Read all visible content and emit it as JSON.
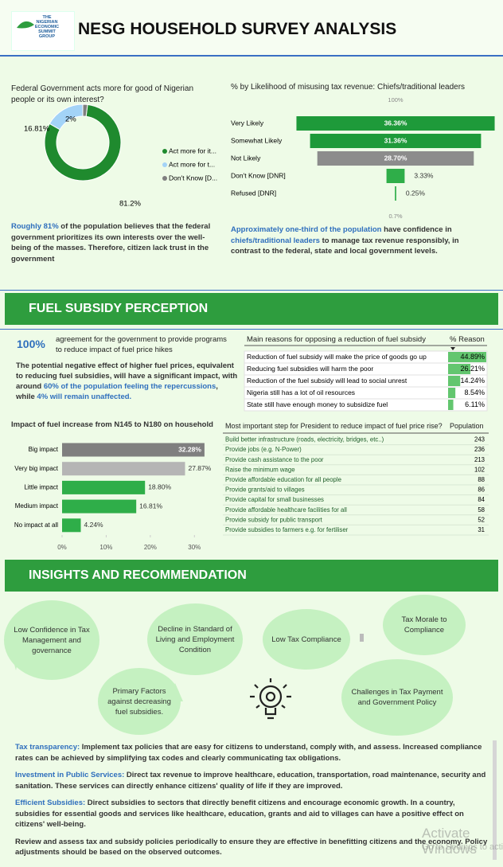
{
  "header": {
    "logo": [
      "THE",
      "NIGERIAN",
      "ECONOMIC",
      "SUMMIT",
      "GROUP"
    ],
    "title": "NESG HOUSEHOLD SURVEY ANALYSIS"
  },
  "chart_data": [
    {
      "type": "donut",
      "title": "Federal Government acts more for good of Nigerian people or its own interest?",
      "categories": [
        "Act more for it...",
        "Act more for t...",
        "Don't Know [D..."
      ],
      "values": [
        81.2,
        16.81,
        2
      ],
      "value_labels": [
        "81.2%",
        "16.81%",
        "2%"
      ],
      "colors": [
        "#1f8a2e",
        "#a3d3f7",
        "#7f7f7f"
      ]
    },
    {
      "type": "funnel",
      "title": "% by Likelihood of misusing tax revenue: Chiefs/traditional leaders",
      "categories": [
        "Very Likely",
        "Somewhat Likely",
        "Not Likely",
        "Don't Know [DNR]",
        "Refused [DNR]"
      ],
      "values": [
        36.36,
        31.36,
        28.7,
        3.33,
        0.25
      ],
      "value_labels": [
        "36.36%",
        "31.36%",
        "28.70%",
        "3.33%",
        "0.25%"
      ],
      "colors": [
        "#1e9a3a",
        "#1e9a3a",
        "#8c8c8c",
        "#2fae49",
        "#2fae49"
      ],
      "annotations": [
        "100%",
        "0.7%"
      ]
    },
    {
      "type": "table-bar",
      "title": "Main reasons for opposing a reduction of fuel subsidy",
      "value_header": "% Reason",
      "categories": [
        "Reduction of fuel subsidy will make the price of goods go up",
        "Reducing fuel subsidies will harm the poor",
        "Reduction of the fuel subsidy will lead to social unrest",
        "Nigeria still has a lot of oil resources",
        "State still have enough money to subsidize fuel"
      ],
      "values": [
        44.89,
        26.21,
        14.24,
        8.54,
        6.11
      ],
      "value_labels": [
        "44.89%",
        "26.21%",
        "14.24%",
        "8.54%",
        "6.11%"
      ],
      "color": "#63c66f"
    },
    {
      "type": "hbar",
      "title": "Impact of fuel increase from N145 to N180 on household",
      "categories": [
        "Big impact",
        "Very big impact",
        "Little impact",
        "Medium impact",
        "No impact at all"
      ],
      "values": [
        32.28,
        27.87,
        18.8,
        16.81,
        4.24
      ],
      "value_labels": [
        "32.28%",
        "27.87%",
        "18.80%",
        "16.81%",
        "4.24%"
      ],
      "colors": [
        "#7f7f7f",
        "#b5b5b5",
        "#2fae49",
        "#2fae49",
        "#2fae49"
      ],
      "xlim": [
        0,
        35
      ],
      "xticks": [
        {
          "value": 0,
          "label": "0%"
        },
        {
          "value": 10,
          "label": "10%"
        },
        {
          "value": 20,
          "label": "20%"
        },
        {
          "value": 30,
          "label": "30%"
        }
      ]
    },
    {
      "type": "table",
      "title": "Most important step for President to reduce impact of fuel price rise?",
      "value_header": "Population",
      "categories": [
        "Build better infrastructure (roads, electricity, bridges, etc..)",
        "Provide jobs (e.g. N-Power)",
        "Provide cash assistance to the poor",
        "Raise the minimum wage",
        "Provide affordable education for all people",
        "Provide grants/aid to villages",
        "Provide capital for small businesses",
        "Provide affordable healthcare facilities for all",
        "Provide subsidy for public transport",
        "Provide subsidies to farmers e.g. for fertiliser"
      ],
      "values": [
        243,
        236,
        213,
        102,
        88,
        86,
        84,
        58,
        52,
        31
      ]
    }
  ],
  "notes": {
    "donut": [
      "Roughly 81%",
      " of the population believes that the federal government prioritizes its own interests over the well-being of the masses. Therefore, citizen lack trust in the government"
    ],
    "funnel": [
      "Approximately one-third of the population",
      " have confidence in ",
      "chiefs/traditional leaders",
      " to manage tax revenue responsibly, in contrast to the federal, state and local government levels."
    ]
  },
  "sections": [
    "FUEL SUBSIDY PERCEPTION",
    "INSIGHTS AND RECOMMENDATION"
  ],
  "fuel": {
    "kpi": "100%",
    "kpi_text": "agreement for the government to provide programs to reduce impact of fuel  price hikes",
    "summary": [
      "The potential negative effect of higher fuel prices, equivalent to reducing fuel subsidies, will have a significant impact, with around ",
      "60% of the population feeling the repercussions",
      ", while ",
      "4% will remain unaffected."
    ]
  },
  "insights": {
    "bubbles": [
      "Low Confidence in Tax Management and governance",
      "Decline in Standard of Living and Employment Condition",
      "Low Tax Compliance",
      "Tax Morale to Compliance",
      "Primary Factors against decreasing fuel subsidies.",
      "Challenges in Tax Payment and Government Policy"
    ]
  },
  "recommendations": [
    {
      "label": "Tax transparency:",
      "text": " Implement tax policies that are easy for citizens to understand, comply with, and assess. Increased compliance rates can be achieved by simplifying tax codes and clearly communicating tax obligations."
    },
    {
      "label": "Investment in Public Services:",
      "text": " Direct tax revenue to improve healthcare, education, transportation, road maintenance, security and sanitation. These services can directly enhance citizens' quality of life if they are improved."
    },
    {
      "label": "Efficient Subsidies:",
      "text": " Direct subsidies to sectors that directly benefit citizens and encourage economic growth. In a country, subsidies for essential goods and services like healthcare, education, grants and aid to villages can have a positive effect on citizens' well-being."
    },
    {
      "text": "Review and assess tax and subsidy policies periodically to ensure they are effective in benefitting citizens and the economy. Policy adjustments should be based on the observed outcomes."
    }
  ],
  "watermark": [
    "Activate Windows",
    "Go to Settings to activate Windows."
  ]
}
